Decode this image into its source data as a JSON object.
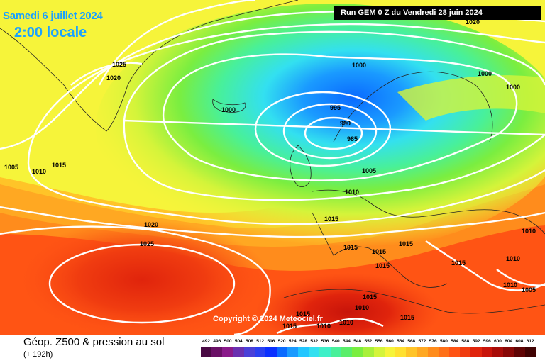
{
  "header": {
    "date": "Samedi 6 juillet 2024",
    "time": "2:00 locale",
    "run": "Run GEM 0 Z du Vendredi 28 juin 2024"
  },
  "copyright": "Copyright © 2024 Meteociel.fr",
  "legend": {
    "title": "Géop. Z500 & pression au sol",
    "subtitle": "(+ 192h)",
    "scale_values": [
      "492",
      "496",
      "500",
      "504",
      "508",
      "512",
      "516",
      "520",
      "524",
      "528",
      "532",
      "536",
      "540",
      "544",
      "548",
      "552",
      "556",
      "560",
      "564",
      "568",
      "572",
      "576",
      "580",
      "584",
      "588",
      "592",
      "596",
      "600",
      "604",
      "608",
      "612"
    ],
    "scale_colors": [
      "#4a0a44",
      "#6a1066",
      "#8a1a8a",
      "#6a30b0",
      "#4a40d8",
      "#2a40f0",
      "#0a30ff",
      "#0a6aff",
      "#1a9aff",
      "#22c6ff",
      "#33e0f0",
      "#3ef0c8",
      "#48f09a",
      "#5aee6a",
      "#7aee40",
      "#a8f03a",
      "#d4f43a",
      "#f6f43a",
      "#ffe030",
      "#ffc428",
      "#ffa822",
      "#ff8c1c",
      "#ff7018",
      "#ff5414",
      "#f03c10",
      "#e0240c",
      "#c8140a",
      "#a80c08",
      "#880806",
      "#600404",
      "#400202"
    ],
    "tone_colors": {
      "bg_yellow": "#f2ee3c",
      "bg_orange": "#ffa41e",
      "bg_red": "#f03c10",
      "low_blue": "#1a9aff",
      "low_core": "#0a6aff",
      "mid_green": "#5aee6a",
      "cyan": "#33e0f0"
    }
  },
  "isobar_labels": [
    {
      "text": "1025"
    },
    {
      "text": "1020"
    },
    {
      "text": "1000"
    },
    {
      "text": "1000"
    },
    {
      "text": "995"
    },
    {
      "text": "990"
    },
    {
      "text": "985"
    },
    {
      "text": "1000"
    },
    {
      "text": "1000"
    },
    {
      "text": "1005"
    },
    {
      "text": "1010"
    },
    {
      "text": "1015"
    },
    {
      "text": "1005"
    },
    {
      "text": "1010"
    },
    {
      "text": "1015"
    },
    {
      "text": "1020"
    },
    {
      "text": "1025"
    },
    {
      "text": "1015"
    },
    {
      "text": "1015"
    },
    {
      "text": "1015"
    },
    {
      "text": "1015"
    },
    {
      "text": "1010"
    },
    {
      "text": "1015"
    },
    {
      "text": "1010"
    },
    {
      "text": "1010"
    },
    {
      "text": "1005"
    },
    {
      "text": "1015"
    },
    {
      "text": "1010"
    },
    {
      "text": "1015"
    },
    {
      "text": "1015"
    },
    {
      "text": "1010"
    },
    {
      "text": "1010"
    },
    {
      "text": "1015"
    },
    {
      "text": "1020"
    }
  ]
}
